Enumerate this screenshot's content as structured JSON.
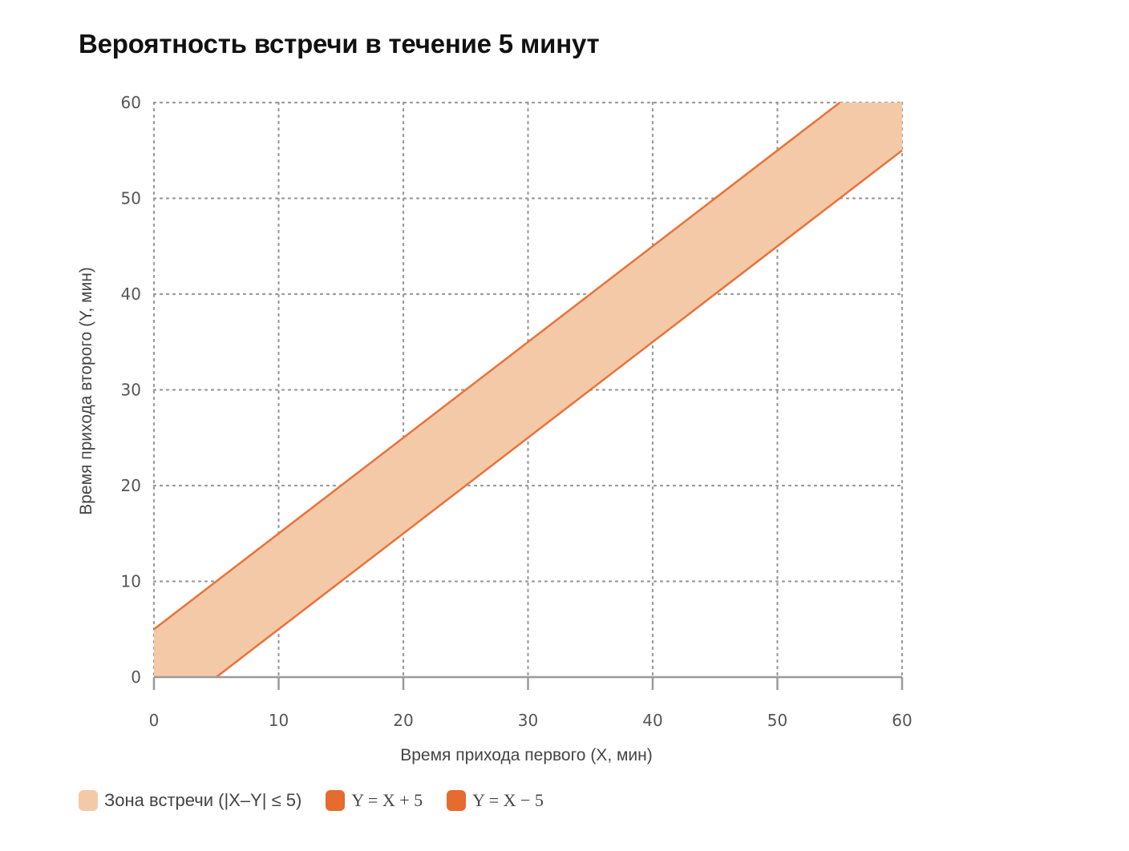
{
  "title": "Вероятность встречи в течение 5 минут",
  "colors": {
    "zone_fill": "#f4c9a8",
    "line": "#e8733a",
    "grid": "#9a9a9a",
    "axis": "#9a9a9a"
  },
  "legend": [
    {
      "label": "Зона встречи (|X–Y| ≤ 5)",
      "color": "#f4c9a8"
    },
    {
      "label": "Y = X + 5",
      "color": "#e56b2f"
    },
    {
      "label": "Y = X − 5",
      "color": "#e56b2f"
    }
  ],
  "chart_data": {
    "type": "area",
    "title": "Вероятность встречи в течение 5 минут",
    "xlabel": "Время прихода первого (X, мин)",
    "ylabel": "Время прихода второго (Y, мин)",
    "xlim": [
      0,
      60
    ],
    "ylim": [
      0,
      60
    ],
    "x_ticks": [
      0,
      10,
      20,
      30,
      40,
      50,
      60
    ],
    "y_ticks": [
      0,
      10,
      20,
      30,
      40,
      50,
      60
    ],
    "grid": true,
    "grid_style": "dotted",
    "legend_position": "bottom-left",
    "series": [
      {
        "name": "Зона встречи (|X–Y| ≤ 5)",
        "type": "area",
        "polygon": [
          [
            0,
            0
          ],
          [
            5,
            0
          ],
          [
            60,
            55
          ],
          [
            60,
            60
          ],
          [
            55,
            60
          ],
          [
            0,
            5
          ]
        ]
      },
      {
        "name": "Y = X + 5",
        "type": "line",
        "x": [
          0,
          55
        ],
        "y": [
          5,
          60
        ]
      },
      {
        "name": "Y = X − 5",
        "type": "line",
        "x": [
          5,
          60
        ],
        "y": [
          0,
          55
        ]
      }
    ]
  }
}
